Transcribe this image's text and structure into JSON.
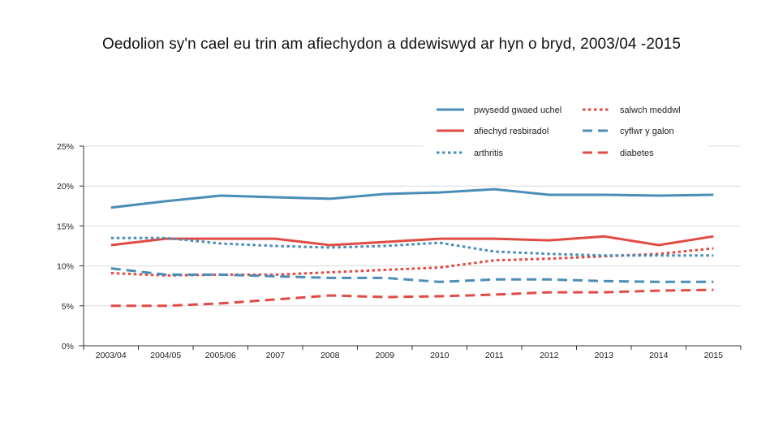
{
  "chart_data": {
    "type": "line",
    "title": "Oedolion sy'n cael eu trin am afiechydon a ddewiswyd ar hyn o bryd, 2003/04 -2015",
    "xlabel": "",
    "ylabel": "",
    "ylim": [
      0,
      25
    ],
    "yticks": [
      "0%",
      "5%",
      "10%",
      "15%",
      "20%",
      "25%"
    ],
    "ytick_values": [
      0,
      5,
      10,
      15,
      20,
      25
    ],
    "grid": true,
    "legend_position": "top-right",
    "categories": [
      "2003/04",
      "2004/05",
      "2005/06",
      "2007",
      "2008",
      "2009",
      "2010",
      "2011",
      "2012",
      "2013",
      "2014",
      "2015"
    ],
    "series": [
      {
        "name": "pwysedd gwaed uchel",
        "color": "#4a8db8",
        "style": "solid",
        "values": [
          17.3,
          18.1,
          18.8,
          18.6,
          18.4,
          19.0,
          19.2,
          19.6,
          18.9,
          18.9,
          18.8,
          18.9
        ]
      },
      {
        "name": "salwch meddwl",
        "color": "#e04b44",
        "style": "dotted",
        "values": [
          9.1,
          8.8,
          8.9,
          8.9,
          9.2,
          9.5,
          9.8,
          10.7,
          10.9,
          11.2,
          11.5,
          12.2
        ]
      },
      {
        "name": "afiechyd resbiradol",
        "color": "#e04b44",
        "style": "solid",
        "values": [
          12.6,
          13.4,
          13.4,
          13.4,
          12.6,
          13.0,
          13.4,
          13.4,
          13.2,
          13.7,
          12.6,
          13.7
        ]
      },
      {
        "name": "cyflwr y galon",
        "color": "#4a8db8",
        "style": "dashed",
        "values": [
          9.7,
          8.9,
          8.9,
          8.7,
          8.5,
          8.5,
          8.0,
          8.3,
          8.3,
          8.1,
          8.0,
          8.0
        ]
      },
      {
        "name": "arthritis",
        "color": "#4a8db8",
        "style": "dotted",
        "values": [
          13.5,
          13.5,
          12.8,
          12.5,
          12.3,
          12.5,
          12.9,
          11.8,
          11.5,
          11.3,
          11.3,
          11.3
        ]
      },
      {
        "name": "diabetes",
        "color": "#e04b44",
        "style": "dashed",
        "values": [
          5.0,
          5.0,
          5.3,
          5.8,
          6.3,
          6.1,
          6.2,
          6.4,
          6.7,
          6.7,
          6.9,
          7.0
        ]
      }
    ]
  }
}
